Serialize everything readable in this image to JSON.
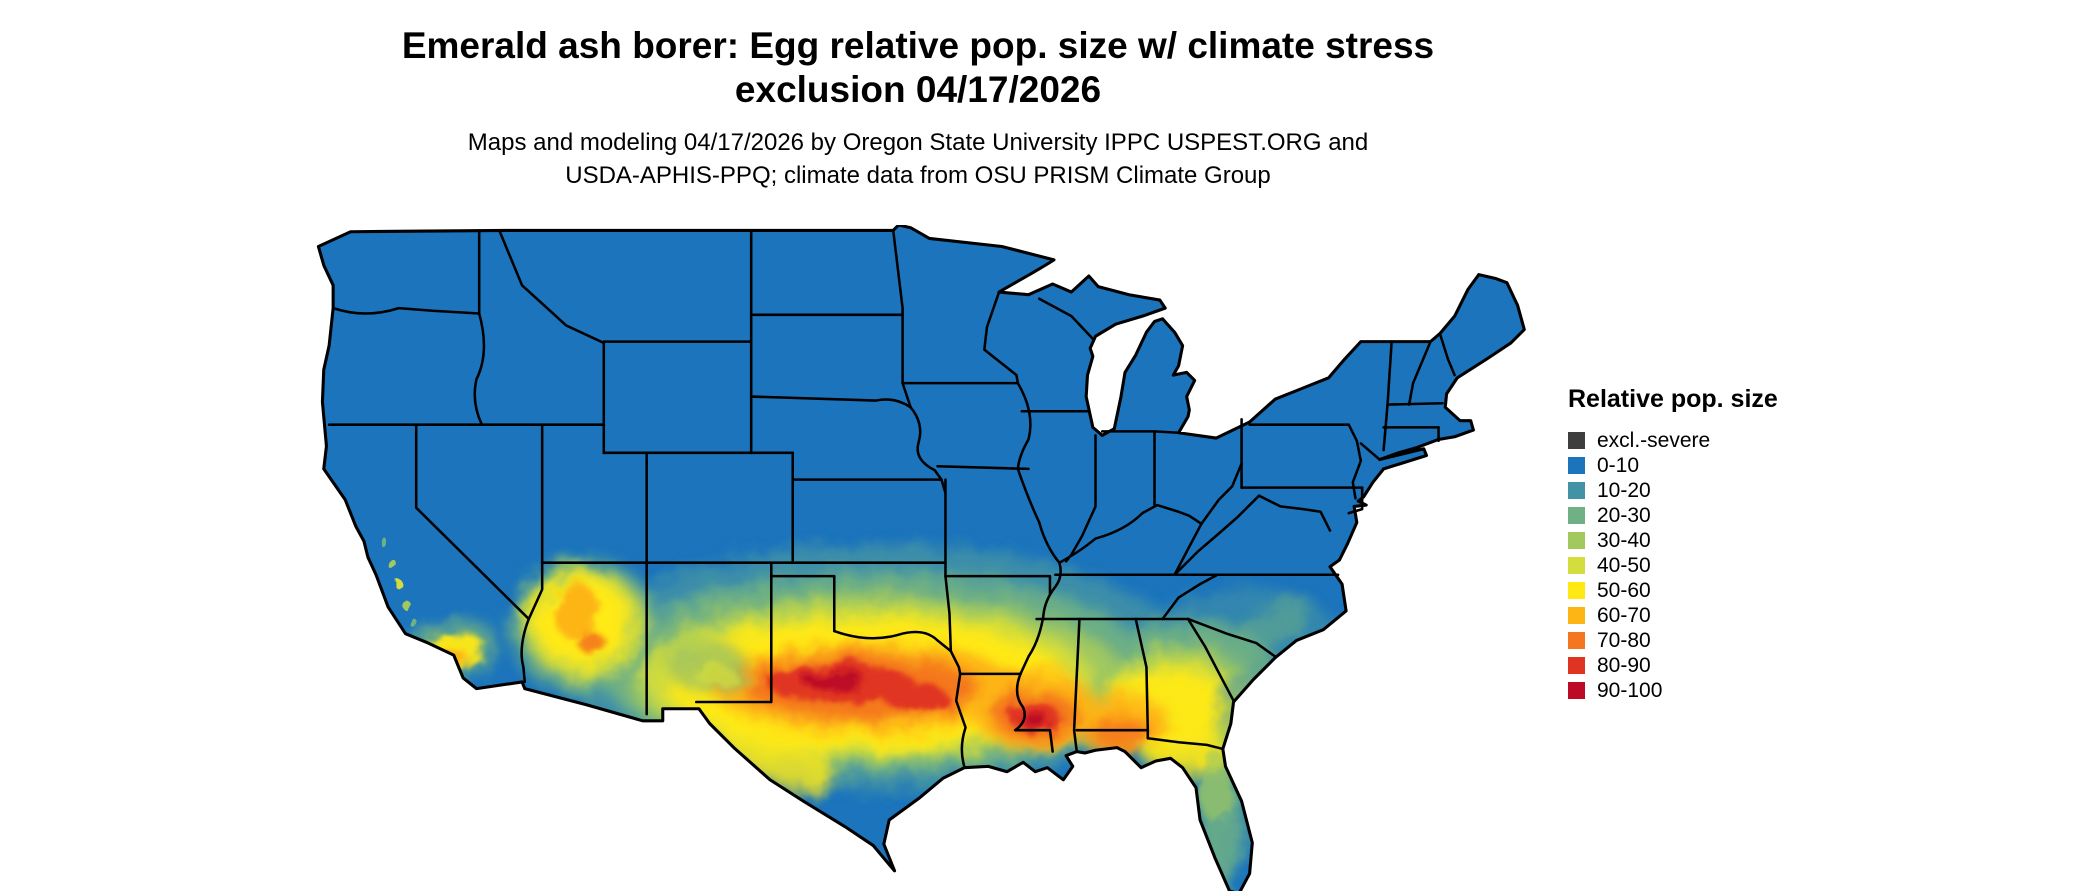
{
  "title": {
    "line1": "Emerald ash borer: Egg relative pop. size w/ climate stress",
    "line2": "exclusion 04/17/2026"
  },
  "subtitle": {
    "line1": "Maps and modeling 04/17/2026 by Oregon State University IPPC USPEST.ORG and",
    "line2": "USDA-APHIS-PPQ; climate data from OSU PRISM Climate Group"
  },
  "legend": {
    "title": "Relative pop. size",
    "items": [
      {
        "label": "excl.-severe",
        "color": "#3E3E3E"
      },
      {
        "label": "0-10",
        "color": "#1B74BC"
      },
      {
        "label": "10-20",
        "color": "#4293A6"
      },
      {
        "label": "20-30",
        "color": "#6FB184"
      },
      {
        "label": "30-40",
        "color": "#A2C95E"
      },
      {
        "label": "40-50",
        "color": "#D3DD3E"
      },
      {
        "label": "50-60",
        "color": "#FFE913"
      },
      {
        "label": "60-70",
        "color": "#FDB515"
      },
      {
        "label": "70-80",
        "color": "#F4771F"
      },
      {
        "label": "80-90",
        "color": "#E03423"
      },
      {
        "label": "90-100",
        "color": "#BD0A26"
      }
    ]
  },
  "map": {
    "description": "Continental United States map of emerald ash borer egg relative population size with climate stress exclusion",
    "background": "#FFFFFF",
    "state_border_color": "#000000",
    "base_fill_label": "0-10"
  }
}
